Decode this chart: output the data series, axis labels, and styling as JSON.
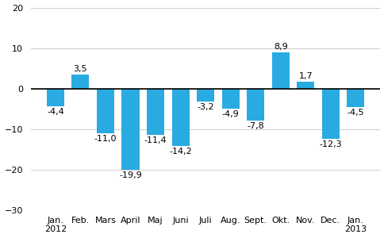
{
  "categories": [
    "Jan.\n2012",
    "Feb.",
    "Mars",
    "April",
    "Maj",
    "Juni",
    "Juli",
    "Aug.",
    "Sept.",
    "Okt.",
    "Nov.",
    "Dec.",
    "Jan.\n2013"
  ],
  "values": [
    -4.4,
    3.5,
    -11.0,
    -19.9,
    -11.4,
    -14.2,
    -3.2,
    -4.9,
    -7.8,
    8.9,
    1.7,
    -12.3,
    -4.5
  ],
  "value_labels": [
    "-4,4",
    "3,5",
    "-11,0",
    "-19,9",
    "-11,4",
    "-14,2",
    "-3,2",
    "-4,9",
    "-7,8",
    "8,9",
    "1,7",
    "-12,3",
    "-4,5"
  ],
  "bar_color": "#29abe2",
  "ylim": [
    -30,
    20
  ],
  "yticks": [
    -30,
    -20,
    -10,
    0,
    10,
    20
  ],
  "tick_fontsize": 8,
  "value_label_fontsize": 8
}
